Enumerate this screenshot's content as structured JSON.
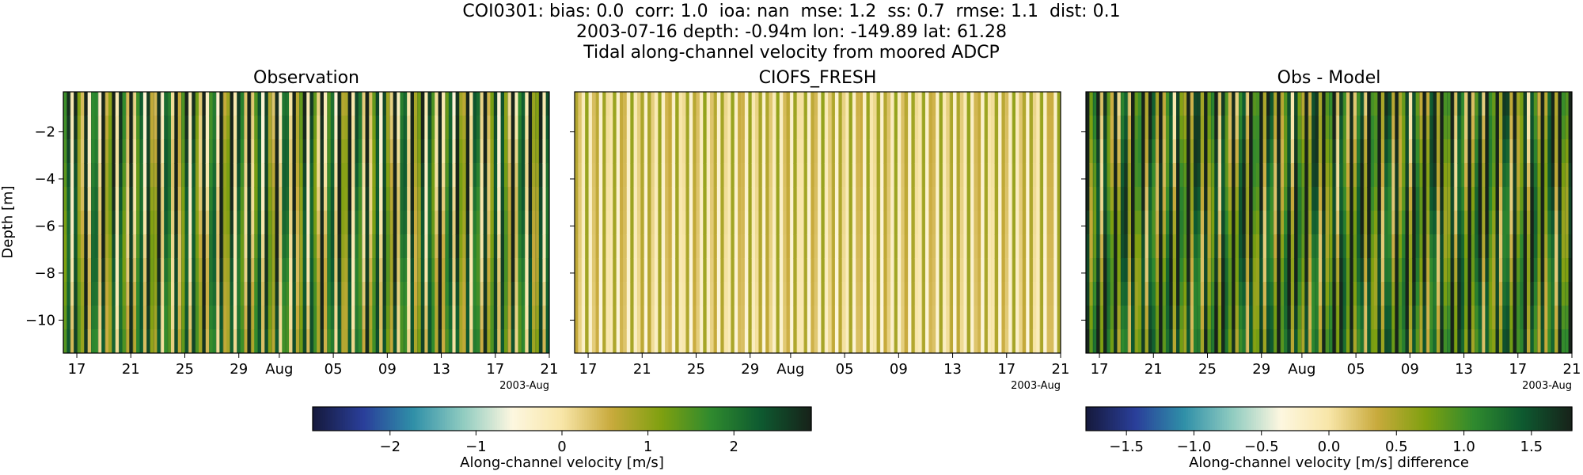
{
  "figure": {
    "title_lines": [
      "COI0301: bias: 0.0  corr: 1.0  ioa: nan  mse: 1.2  ss: 0.7  rmse: 1.1  dist: 0.1",
      "2003-07-16 depth: -0.94m lon: -149.89 lat: 61.28",
      "Tidal along-channel velocity from moored ADCP"
    ],
    "ylabel": "Depth [m]",
    "x_offset_label": "2003-Aug",
    "colormap_stops": [
      "#161a3e",
      "#2a3f9a",
      "#2f8fa8",
      "#8fcbc0",
      "#fdf7e0",
      "#f8e6a8",
      "#c8aa3c",
      "#7fa010",
      "#2f8a2e",
      "#0e5a30",
      "#17231a"
    ]
  },
  "chart_data": [
    {
      "type": "heatmap",
      "title": "Observation",
      "x_tick_labels": [
        "17",
        "21",
        "25",
        "29",
        "Aug",
        "05",
        "09",
        "13",
        "17",
        "21"
      ],
      "x_range": [
        "2003-07-16",
        "2003-08-21"
      ],
      "y_ticks": [
        -2,
        -4,
        -6,
        -8,
        -10
      ],
      "ylim": [
        -11.4,
        -0.3
      ],
      "bias": 1.4,
      "amplitude": 1.7
    },
    {
      "type": "heatmap",
      "title": "CIOFS_FRESH",
      "x_tick_labels": [
        "17",
        "21",
        "25",
        "29",
        "Aug",
        "05",
        "09",
        "13",
        "17",
        "21"
      ],
      "x_range": [
        "2003-07-16",
        "2003-08-21"
      ],
      "y_ticks": [
        -2,
        -4,
        -6,
        -8,
        -10
      ],
      "ylim": [
        -11.4,
        -0.3
      ],
      "bias": 0.3,
      "amplitude": 0.7
    },
    {
      "type": "heatmap",
      "title": "Obs - Model",
      "x_tick_labels": [
        "17",
        "21",
        "25",
        "29",
        "Aug",
        "05",
        "09",
        "13",
        "17",
        "21"
      ],
      "x_range": [
        "2003-07-16",
        "2003-08-21"
      ],
      "y_ticks": [
        -2,
        -4,
        -6,
        -8,
        -10
      ],
      "ylim": [
        -11.4,
        -0.3
      ],
      "bias": 1.1,
      "amplitude": 0.9
    }
  ],
  "colorbars": [
    {
      "label": "Along-channel velocity [m/s]",
      "range": [
        -2.9,
        2.9
      ],
      "ticks": [
        -2,
        -1,
        0,
        1,
        2
      ],
      "tick_labels": [
        "−2",
        "−1",
        "0",
        "1",
        "2"
      ]
    },
    {
      "label": "Along-channel velocity [m/s] difference",
      "range": [
        -1.8,
        1.8
      ],
      "ticks": [
        -1.5,
        -1.0,
        -0.5,
        0.0,
        0.5,
        1.0,
        1.5
      ],
      "tick_labels": [
        "−1.5",
        "−1.0",
        "−0.5",
        "0.0",
        "0.5",
        "1.0",
        "1.5"
      ]
    }
  ]
}
